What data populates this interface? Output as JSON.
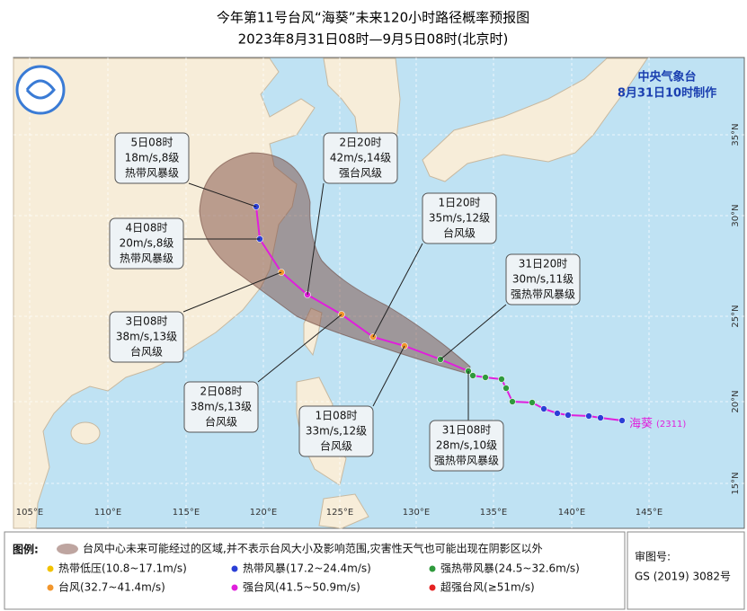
{
  "header": {
    "title": "今年第11号台风“海葵”未来120小时路径概率预报图",
    "subtitle": "2023年8月31日08时—9月5日08时(北京时)"
  },
  "agency": {
    "name": "中央气象台",
    "issued": "8月31日10时制作"
  },
  "typhoon": {
    "name": "海葵",
    "code": "(2311)"
  },
  "forecasts": [
    {
      "time": "5日08时",
      "wind": "18m/s,8级",
      "grade": "热带风暴级"
    },
    {
      "time": "4日08时",
      "wind": "20m/s,8级",
      "grade": "热带风暴级"
    },
    {
      "time": "3日08时",
      "wind": "38m/s,13级",
      "grade": "台风级"
    },
    {
      "time": "2日20时",
      "wind": "42m/s,14级",
      "grade": "强台风级"
    },
    {
      "time": "2日08时",
      "wind": "38m/s,13级",
      "grade": "台风级"
    },
    {
      "time": "1日20时",
      "wind": "35m/s,12级",
      "grade": "台风级"
    },
    {
      "time": "1日08时",
      "wind": "33m/s,12级",
      "grade": "台风级"
    },
    {
      "time": "31日20时",
      "wind": "30m/s,11级",
      "grade": "强热带风暴级"
    },
    {
      "time": "31日08时",
      "wind": "28m/s,10级",
      "grade": "强热带风暴级"
    }
  ],
  "longitudes": [
    "105°E",
    "110°E",
    "115°E",
    "120°E",
    "125°E",
    "130°E",
    "135°E",
    "140°E",
    "145°E"
  ],
  "latitudes": [
    "35°N",
    "30°N",
    "25°N",
    "20°N",
    "15°N"
  ],
  "legend": {
    "title": "图例:",
    "cone": "台风中心未来可能经过的区域,并不表示台风大小及影响范围,灾害性天气也可能出现在阴影区以外",
    "classes": [
      {
        "label": "热带低压(10.8~17.1m/s)",
        "color": "#f2c200"
      },
      {
        "label": "热带风暴(17.2~24.4m/s)",
        "color": "#2b3fd6"
      },
      {
        "label": "强热带风暴(24.5~32.6m/s)",
        "color": "#2f9a3c"
      },
      {
        "label": "台风(32.7~41.4m/s)",
        "color": "#f2962c"
      },
      {
        "label": "强台风(41.5~50.9m/s)",
        "color": "#e01fdc"
      },
      {
        "label": "超强台风(≥51m/s)",
        "color": "#e52222"
      }
    ]
  },
  "approval": {
    "label": "审图号:",
    "number": "GS (2019) 3082号"
  }
}
